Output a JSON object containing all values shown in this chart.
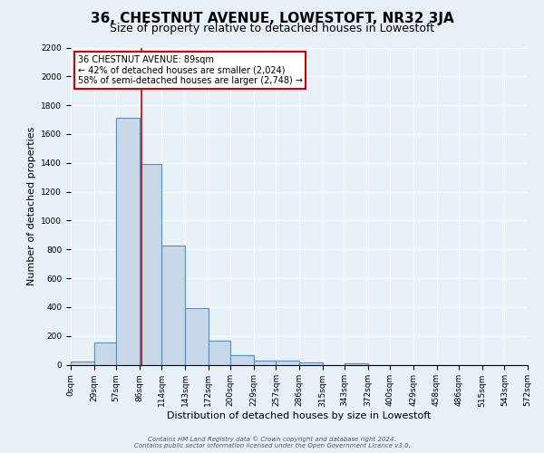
{
  "title": "36, CHESTNUT AVENUE, LOWESTOFT, NR32 3JA",
  "subtitle": "Size of property relative to detached houses in Lowestoft",
  "xlabel": "Distribution of detached houses by size in Lowestoft",
  "ylabel": "Number of detached properties",
  "bin_edges": [
    0,
    29,
    57,
    86,
    114,
    143,
    172,
    200,
    229,
    257,
    286,
    315,
    343,
    372,
    400,
    429,
    458,
    486,
    515,
    543,
    572
  ],
  "bar_heights": [
    20,
    155,
    1710,
    1390,
    825,
    390,
    165,
    65,
    30,
    30,
    15,
    0,
    10,
    0,
    0,
    0,
    0,
    0,
    0,
    0
  ],
  "bar_color": "#c8d8e8",
  "bar_edge_color": "#5b8db8",
  "property_size": 89,
  "vline_color": "#cc0000",
  "annotation_line1": "36 CHESTNUT AVENUE: 89sqm",
  "annotation_line2": "← 42% of detached houses are smaller (2,024)",
  "annotation_line3": "58% of semi-detached houses are larger (2,748) →",
  "annotation_box_color": "white",
  "annotation_box_edge_color": "#cc0000",
  "ylim": [
    0,
    2200
  ],
  "yticks": [
    0,
    200,
    400,
    600,
    800,
    1000,
    1200,
    1400,
    1600,
    1800,
    2000,
    2200
  ],
  "footer1": "Contains HM Land Registry data © Crown copyright and database right 2024.",
  "footer2": "Contains public sector information licensed under the Open Government Licence v3.0.",
  "bg_color": "#e8f0f8",
  "plot_bg_color": "#e8f0f8",
  "grid_color": "white",
  "title_fontsize": 11,
  "subtitle_fontsize": 9,
  "tick_label_fontsize": 6.5,
  "axis_label_fontsize": 8,
  "annotation_fontsize": 7,
  "footer_fontsize": 5
}
